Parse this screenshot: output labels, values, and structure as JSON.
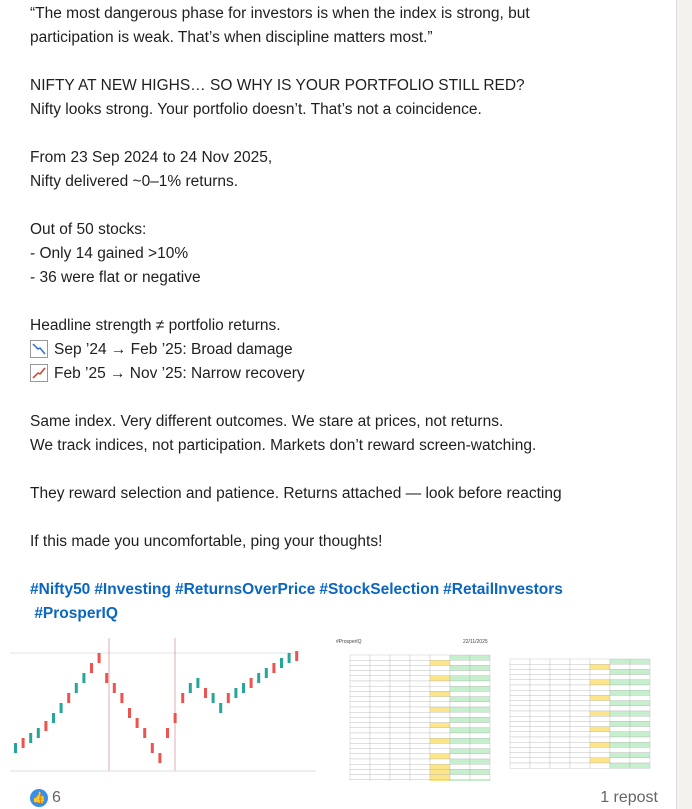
{
  "post": {
    "quote": "“The most dangerous phase for investors is when the index is strong, but participation is weak. That’s when discipline matters most.”",
    "headline": "NIFTY AT NEW HIGHS… SO WHY IS YOUR PORTFOLIO STILL RED?",
    "subhead": "Nifty looks strong. Your portfolio doesn’t. That’s not a coincidence.",
    "period_1": "From 23 Sep 2024 to 24 Nov 2025,",
    "period_2": "Nifty delivered ~0–1% returns.",
    "stocks_intro": "Out of 50 stocks:",
    "stocks_1": "- Only 14 gained >10%",
    "stocks_2": "- 36 were flat or negative",
    "strength": "Headline strength ≠ portfolio returns.",
    "phase_1": "Sep ’24 → Feb ’25: Broad damage",
    "phase_1_icon": "chart-decreasing-icon",
    "phase_2": "Feb ’25 → Nov ’25: Narrow recovery",
    "phase_2_icon": "chart-increasing-icon",
    "para_1": "Same index. Very different outcomes. We stare at prices, not returns.",
    "para_2": "We track indices, not participation. Markets don’t reward screen-watching.",
    "para_3": "They reward selection and patience. Returns attached — look before reacting",
    "para_4": "If this made you uncomfortable, ping your thoughts!",
    "hashtags": [
      "#Nifty50",
      "#Investing",
      "#ReturnsOverPrice",
      "#StockSelection",
      "#RetailInvestors",
      "#ProsperIQ"
    ]
  },
  "attachments": {
    "table_brand": "#ProsperIQ",
    "table_date": "22/11/2025",
    "colors": {
      "up": "#26a69a",
      "down": "#ef5350",
      "yellow": "#fde68a",
      "green": "#c6efce"
    }
  },
  "footer": {
    "reactions": "6",
    "reposts": "1 repost",
    "like_icon": "thumbs-up-icon"
  }
}
